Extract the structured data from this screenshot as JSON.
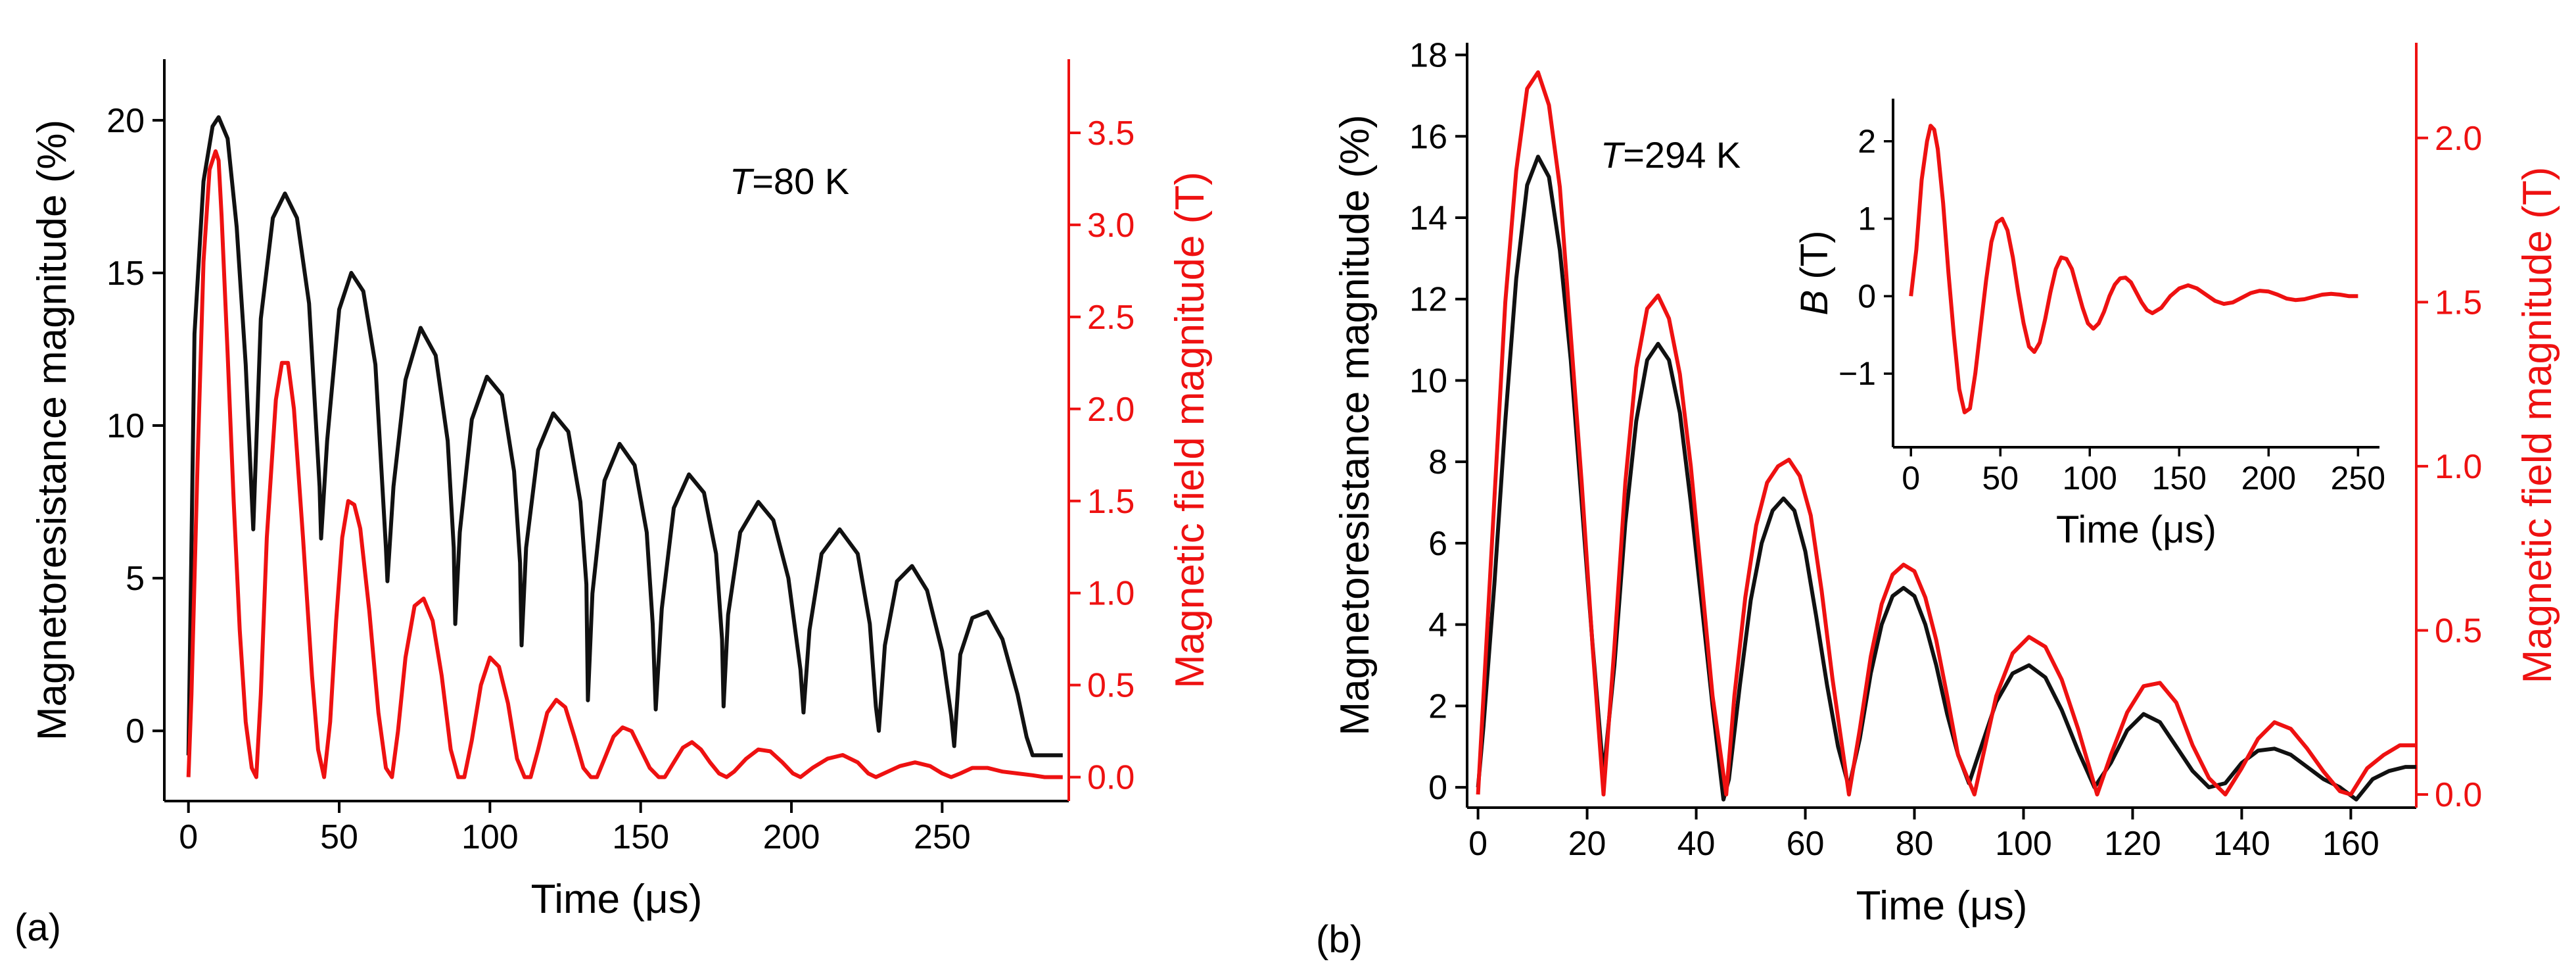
{
  "colors": {
    "axis": "#000000",
    "black_series": "#111111",
    "red_series": "#ee1111"
  },
  "chart_data": [
    {
      "panel": "(a)",
      "type": "line",
      "annotation": {
        "italic": "T",
        "rest": "=80 K"
      },
      "xlabel": "Time (μs)",
      "ylabel_left": "Magnetoresistance magnitude (%)",
      "ylabel_right": "Magnetic field magnitude (T)",
      "xlim": [
        -8,
        292
      ],
      "ylim_left": [
        -2.3,
        22
      ],
      "ylim_right": [
        -0.13,
        3.9
      ],
      "x_ticks": [
        0,
        50,
        100,
        150,
        200,
        250
      ],
      "x_tick_labels": [
        "0",
        "50",
        "100",
        "150",
        "200",
        "250"
      ],
      "y_left_ticks": [
        0,
        5,
        10,
        15,
        20
      ],
      "y_left_tick_labels": [
        "0",
        "5",
        "10",
        "15",
        "20"
      ],
      "y_right_ticks": [
        0,
        0.5,
        1.0,
        1.5,
        2.0,
        2.5,
        3.0,
        3.5
      ],
      "y_right_tick_labels": [
        "0.0",
        "0.5",
        "1.0",
        "1.5",
        "2.0",
        "2.5",
        "3.0",
        "3.5"
      ],
      "series": [
        {
          "name": "Magnetoresistance magnitude",
          "axis": "left",
          "color": "black",
          "x": [
            0,
            2,
            5,
            8,
            10,
            13,
            16,
            19,
            21.5,
            22,
            24,
            28,
            32,
            36,
            40,
            43.5,
            44,
            46,
            50,
            54,
            58,
            62,
            65.5,
            66,
            68,
            72,
            77,
            82,
            86,
            88,
            88.5,
            90,
            94,
            99,
            104,
            108,
            110,
            110.5,
            112,
            116,
            121,
            126,
            130,
            132,
            132.5,
            134,
            138,
            143,
            148,
            152,
            154,
            155,
            157,
            161,
            166,
            171,
            175,
            177,
            177.5,
            179,
            183,
            189,
            194,
            199,
            203,
            204,
            206,
            210,
            216,
            222,
            226,
            228,
            229,
            231,
            235,
            240,
            245,
            250,
            253,
            254,
            256,
            260,
            265,
            270,
            275,
            278,
            280,
            284,
            290
          ],
          "y": [
            -0.8,
            13,
            18,
            19.8,
            20.1,
            19.4,
            16.5,
            12,
            6.6,
            8,
            13.5,
            16.8,
            17.6,
            16.8,
            14,
            8,
            6.3,
            9.5,
            13.8,
            15,
            14.4,
            12,
            6,
            4.9,
            8,
            11.5,
            13.2,
            12.3,
            9.5,
            6,
            3.5,
            6.5,
            10.2,
            11.6,
            11,
            8.5,
            5.5,
            2.8,
            6,
            9.2,
            10.4,
            9.8,
            7.5,
            4.8,
            1.0,
            4.5,
            8.2,
            9.4,
            8.7,
            6.5,
            3.5,
            0.7,
            4,
            7.3,
            8.4,
            7.8,
            5.8,
            3,
            0.8,
            3.8,
            6.5,
            7.5,
            6.9,
            5,
            2,
            0.6,
            3.3,
            5.8,
            6.6,
            5.8,
            3.5,
            0.8,
            0.0,
            2.8,
            4.9,
            5.4,
            4.6,
            2.6,
            0.5,
            -0.5,
            2.5,
            3.7,
            3.9,
            3.0,
            1.2,
            -0.2,
            -0.8,
            -0.8,
            -0.8
          ]
        },
        {
          "name": "Magnetic field magnitude",
          "axis": "right",
          "color": "red",
          "x": [
            0,
            1,
            3,
            5,
            7,
            9,
            10,
            11,
            13,
            15,
            17,
            19,
            21,
            22.5,
            24,
            26,
            29,
            31,
            33,
            35,
            38,
            41,
            43,
            45,
            47,
            49,
            51,
            53,
            55,
            57,
            60,
            63,
            65.5,
            67.5,
            69.5,
            72,
            75,
            78,
            81,
            84,
            87,
            89.5,
            91.5,
            94,
            97,
            100,
            103,
            106,
            109,
            111.5,
            113.5,
            116,
            119,
            122,
            125,
            128,
            131,
            133.5,
            135.5,
            138,
            141,
            144,
            147,
            150,
            153,
            156,
            158,
            161,
            164,
            167,
            170,
            173,
            176,
            178.5,
            181,
            185,
            189,
            193,
            197,
            200.5,
            203,
            207,
            212,
            217,
            222,
            225.5,
            228,
            232,
            236,
            241,
            246,
            250,
            253,
            256,
            260,
            265,
            270,
            275,
            280,
            284,
            290
          ],
          "y": [
            0.0,
            0.45,
            1.7,
            2.8,
            3.3,
            3.4,
            3.35,
            3.05,
            2.3,
            1.5,
            0.8,
            0.3,
            0.05,
            0.0,
            0.45,
            1.3,
            2.05,
            2.25,
            2.25,
            2.0,
            1.3,
            0.55,
            0.15,
            0.0,
            0.3,
            0.85,
            1.3,
            1.5,
            1.48,
            1.35,
            0.9,
            0.35,
            0.05,
            0.0,
            0.25,
            0.65,
            0.93,
            0.97,
            0.85,
            0.55,
            0.15,
            0.0,
            0.0,
            0.2,
            0.5,
            0.65,
            0.6,
            0.4,
            0.1,
            0.0,
            0.0,
            0.15,
            0.35,
            0.42,
            0.38,
            0.22,
            0.05,
            0.0,
            0.0,
            0.1,
            0.22,
            0.27,
            0.25,
            0.15,
            0.05,
            0.0,
            0.0,
            0.08,
            0.16,
            0.19,
            0.15,
            0.08,
            0.02,
            0.0,
            0.03,
            0.1,
            0.15,
            0.14,
            0.08,
            0.02,
            0.0,
            0.05,
            0.1,
            0.12,
            0.08,
            0.02,
            0.0,
            0.03,
            0.06,
            0.08,
            0.06,
            0.02,
            0.0,
            0.02,
            0.05,
            0.05,
            0.03,
            0.02,
            0.01,
            0.0,
            0.0
          ]
        }
      ]
    },
    {
      "panel": "(b)",
      "type": "line",
      "annotation": {
        "italic": "T",
        "rest": "=294 K"
      },
      "xlabel": "Time (μs)",
      "ylabel_left": "Magnetoresistance magnitude (%)",
      "ylabel_right": "Magnetic field magnitude (T)",
      "xlim": [
        -2,
        172
      ],
      "ylim_left": [
        -0.5,
        18.3
      ],
      "ylim_right": [
        -0.04,
        2.29
      ],
      "x_ticks": [
        0,
        20,
        40,
        60,
        80,
        100,
        120,
        140,
        160
      ],
      "x_tick_labels": [
        "0",
        "20",
        "40",
        "60",
        "80",
        "100",
        "120",
        "140",
        "160"
      ],
      "y_left_ticks": [
        0,
        2,
        4,
        6,
        8,
        10,
        12,
        14,
        16,
        18
      ],
      "y_left_tick_labels": [
        "0",
        "2",
        "4",
        "6",
        "8",
        "10",
        "12",
        "14",
        "16",
        "18"
      ],
      "y_right_ticks": [
        0,
        0.5,
        1.0,
        1.5,
        2.0
      ],
      "y_right_tick_labels": [
        "0.0",
        "0.5",
        "1.0",
        "1.5",
        "2.0"
      ],
      "series": [
        {
          "name": "Magnetoresistance magnitude",
          "axis": "left",
          "color": "black",
          "x": [
            0,
            1,
            3,
            5,
            7,
            9,
            11,
            13,
            15,
            17,
            19,
            21,
            23,
            25,
            27,
            29,
            31,
            33,
            35,
            37,
            39,
            41,
            43,
            45,
            46,
            48,
            50,
            52,
            54,
            56,
            58,
            60,
            62,
            64,
            66,
            68,
            70,
            72,
            74,
            76,
            78,
            80,
            82,
            84,
            86,
            88,
            90,
            92,
            95,
            98,
            101,
            104,
            107,
            110,
            113,
            116,
            119,
            122,
            125,
            128,
            131,
            134,
            137,
            140,
            143,
            146,
            149,
            152,
            155,
            158,
            161,
            164,
            167,
            170,
            172
          ],
          "y": [
            0.0,
            1.5,
            5.0,
            9.0,
            12.5,
            14.8,
            15.5,
            15.0,
            13.2,
            10.5,
            7.0,
            3.5,
            0.3,
            3.0,
            6.5,
            9.0,
            10.5,
            10.9,
            10.5,
            9.2,
            7.0,
            4.5,
            2.0,
            -0.3,
            0.2,
            2.5,
            4.6,
            6.0,
            6.8,
            7.1,
            6.8,
            5.8,
            4.2,
            2.5,
            1.0,
            0.0,
            1.2,
            2.8,
            4.0,
            4.7,
            4.9,
            4.7,
            4.0,
            3.0,
            1.8,
            0.8,
            0.1,
            0.9,
            2.1,
            2.8,
            3.0,
            2.7,
            1.9,
            0.9,
            0.0,
            0.6,
            1.4,
            1.8,
            1.6,
            1.0,
            0.4,
            0.0,
            0.1,
            0.6,
            0.9,
            0.95,
            0.8,
            0.5,
            0.2,
            0.0,
            -0.3,
            0.2,
            0.4,
            0.5,
            0.5
          ]
        },
        {
          "name": "Magnetic field magnitude",
          "axis": "right",
          "color": "red",
          "x": [
            0,
            1,
            3,
            5,
            7,
            9,
            11,
            13,
            15,
            17,
            19,
            21,
            23,
            25,
            27,
            29,
            31,
            33,
            35,
            37,
            39,
            41,
            43,
            45.5,
            47,
            49,
            51,
            53,
            55,
            57,
            59,
            61,
            63,
            65,
            68,
            70,
            72,
            74,
            76,
            78,
            80,
            82,
            84,
            86,
            88,
            91,
            93,
            95,
            98,
            101,
            104,
            107,
            110,
            113.5,
            116,
            119,
            122,
            125,
            128,
            131,
            134,
            137,
            140,
            143,
            146,
            149,
            152,
            155,
            158,
            160,
            163,
            166,
            169,
            172
          ],
          "y": [
            0.0,
            0.3,
            0.9,
            1.5,
            1.9,
            2.15,
            2.2,
            2.1,
            1.85,
            1.4,
            0.95,
            0.45,
            0.0,
            0.45,
            0.95,
            1.3,
            1.48,
            1.52,
            1.45,
            1.28,
            1.0,
            0.65,
            0.3,
            0.0,
            0.3,
            0.6,
            0.82,
            0.95,
            1.0,
            1.02,
            0.97,
            0.85,
            0.62,
            0.35,
            0.0,
            0.2,
            0.42,
            0.58,
            0.67,
            0.7,
            0.68,
            0.6,
            0.47,
            0.3,
            0.12,
            0.0,
            0.15,
            0.3,
            0.43,
            0.48,
            0.45,
            0.35,
            0.2,
            0.0,
            0.12,
            0.25,
            0.33,
            0.34,
            0.28,
            0.15,
            0.05,
            0.0,
            0.08,
            0.17,
            0.22,
            0.2,
            0.14,
            0.07,
            0.01,
            0.0,
            0.08,
            0.12,
            0.15,
            0.15
          ]
        }
      ],
      "inset": {
        "type": "line",
        "xlabel": "Time (μs)",
        "ylabel_italic": "B",
        "ylabel_rest": " (T)",
        "xlim": [
          -10,
          262
        ],
        "ylim": [
          -1.95,
          2.55
        ],
        "x_ticks": [
          0,
          50,
          100,
          150,
          200,
          250
        ],
        "x_tick_labels": [
          "0",
          "50",
          "100",
          "150",
          "200",
          "250"
        ],
        "y_ticks": [
          -1,
          0,
          1,
          2
        ],
        "y_tick_labels": [
          "−1",
          "0",
          "1",
          "2"
        ],
        "series": [
          {
            "name": "B",
            "color": "red",
            "x": [
              0,
              3,
              6,
              9,
              11,
              13,
              15,
              18,
              21,
              24,
              27,
              30,
              33,
              36,
              39,
              42,
              45,
              48,
              51,
              54,
              57,
              60,
              63,
              66,
              69,
              72,
              75,
              78,
              81,
              84,
              87,
              90,
              93,
              96,
              99,
              102,
              105,
              108,
              111,
              114,
              117,
              120,
              123,
              126,
              129,
              132,
              135,
              140,
              145,
              150,
              155,
              160,
              165,
              170,
              175,
              180,
              185,
              190,
              195,
              200,
              205,
              210,
              215,
              220,
              225,
              230,
              235,
              240,
              245,
              250
            ],
            "y": [
              0.0,
              0.6,
              1.5,
              2.0,
              2.2,
              2.15,
              1.9,
              1.2,
              0.3,
              -0.5,
              -1.2,
              -1.5,
              -1.45,
              -1.0,
              -0.4,
              0.2,
              0.7,
              0.95,
              1.0,
              0.85,
              0.5,
              0.05,
              -0.35,
              -0.65,
              -0.72,
              -0.6,
              -0.3,
              0.05,
              0.35,
              0.5,
              0.48,
              0.35,
              0.1,
              -0.15,
              -0.35,
              -0.42,
              -0.35,
              -0.2,
              0.0,
              0.15,
              0.23,
              0.24,
              0.18,
              0.05,
              -0.08,
              -0.18,
              -0.22,
              -0.15,
              0.0,
              0.1,
              0.14,
              0.1,
              0.02,
              -0.06,
              -0.1,
              -0.08,
              -0.02,
              0.04,
              0.07,
              0.06,
              0.02,
              -0.03,
              -0.05,
              -0.04,
              -0.01,
              0.02,
              0.03,
              0.02,
              0.0,
              0.0
            ]
          }
        ]
      }
    }
  ]
}
